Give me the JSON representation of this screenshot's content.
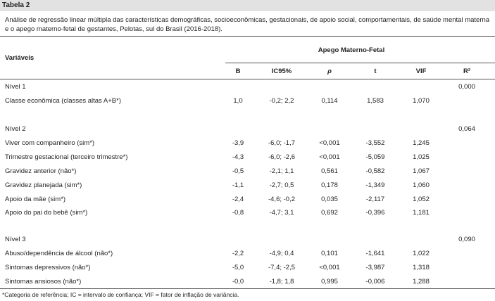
{
  "table_label": "Tabela 2",
  "caption": "Análise de regressão linear múltipla das características demográficas, socioeconômicas, gestacionais, de apoio social, comportamentais, de saúde mental materna e o apego materno-fetal de gestantes, Pelotas, sul do Brasil (2016-2018).",
  "header": {
    "variables": "Variáveis",
    "group": "Apego Materno-Fetal",
    "columns": [
      "B",
      "IC95%",
      "ρ",
      "t",
      "VIF",
      "R²"
    ]
  },
  "levels": [
    {
      "label": "Nível 1",
      "r2": "0,000",
      "rows": [
        {
          "variable": "Classe econômica (classes altas A+B*)",
          "b": "1,0",
          "ic": "-0,2; 2,2",
          "p": "0,114",
          "t": "1,583",
          "vif": "1,070"
        }
      ]
    },
    {
      "label": "Nível 2",
      "r2": "0,064",
      "rows": [
        {
          "variable": "Viver com companheiro (sim*)",
          "b": "-3,9",
          "ic": "-6,0; -1,7",
          "p": "<0,001",
          "t": "-3,552",
          "vif": "1,245"
        },
        {
          "variable": "Trimestre gestacional (terceiro trimestre*)",
          "b": "-4,3",
          "ic": "-6,0; -2,6",
          "p": "<0,001",
          "t": "-5,059",
          "vif": "1,025"
        },
        {
          "variable": "Gravidez anterior (não*)",
          "b": "-0,5",
          "ic": "-2,1; 1,1",
          "p": "0,561",
          "t": "-0,582",
          "vif": "1,067"
        },
        {
          "variable": "Gravidez planejada (sim*)",
          "b": "-1,1",
          "ic": "-2,7; 0,5",
          "p": "0,178",
          "t": "-1,349",
          "vif": "1,060"
        },
        {
          "variable": "Apoio da mãe (sim*)",
          "b": "-2,4",
          "ic": "-4,6; -0,2",
          "p": "0,035",
          "t": "-2,117",
          "vif": "1,052"
        },
        {
          "variable": "Apoio do pai do bebê (sim*)",
          "b": "-0,8",
          "ic": "-4,7; 3,1",
          "p": "0,692",
          "t": "-0,396",
          "vif": "1,181"
        }
      ]
    },
    {
      "label": "Nível 3",
      "r2": "0,090",
      "rows": [
        {
          "variable": "Abuso/dependência de álcool (não*)",
          "b": "-2,2",
          "ic": "-4,9; 0,4",
          "p": "0,101",
          "t": "-1,641",
          "vif": "1,022"
        },
        {
          "variable": "Sintomas depressivos (não*)",
          "b": "-5,0",
          "ic": "-7,4; -2,5",
          "p": "<0,001",
          "t": "-3,987",
          "vif": "1,318"
        },
        {
          "variable": "Sintomas ansiosos (não*)",
          "b": "-0,0",
          "ic": "-1,8; 1,8",
          "p": "0,995",
          "t": "-0,006",
          "vif": "1,288"
        }
      ]
    }
  ],
  "footnote": "*Categoria de referência; IC = intervalo de confiança; VIF = fator de inflação de variância."
}
